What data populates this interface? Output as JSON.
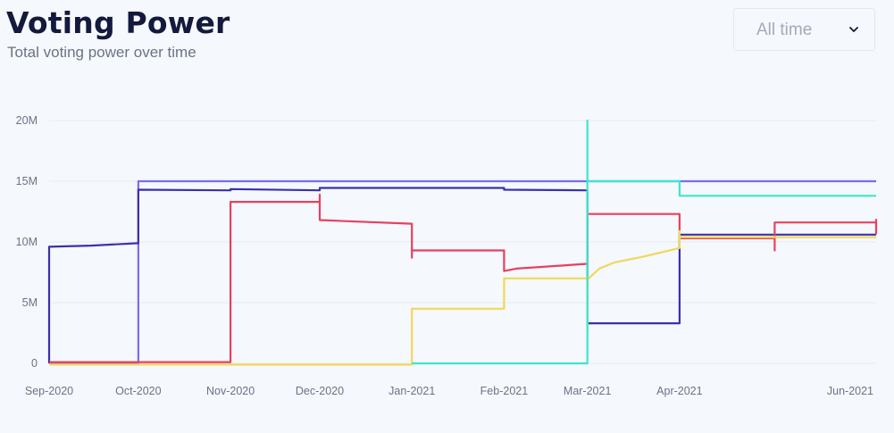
{
  "header": {
    "title": "Voting Power",
    "subtitle": "Total voting power over time"
  },
  "range_select": {
    "value": "All time",
    "icon": "chevron-down-icon"
  },
  "chart_data": {
    "type": "line",
    "x_axis": {
      "type": "date",
      "ticks": [
        "Sep-2020",
        "Oct-2020",
        "Nov-2020",
        "Dec-2020",
        "Jan-2021",
        "Feb-2021",
        "Mar-2021",
        "Apr-2021",
        "Jun-2021"
      ],
      "range": [
        "2020-09-01",
        "2021-06-10"
      ]
    },
    "y_axis": {
      "ticks": [
        "0",
        "5M",
        "10M",
        "15M",
        "20M"
      ],
      "range": [
        0,
        20000000
      ]
    },
    "grid": true,
    "legend": false,
    "series": [
      {
        "color": "#7a6cf0",
        "points": [
          [
            "2020-09-01",
            0
          ],
          [
            "2020-10-01",
            0
          ],
          [
            "2020-10-01",
            15000000
          ],
          [
            "2021-06-10",
            15000000
          ]
        ]
      },
      {
        "color": "#3a31a8",
        "points": [
          [
            "2020-09-01",
            0
          ],
          [
            "2020-09-01",
            9600000
          ],
          [
            "2020-09-15",
            9700000
          ],
          [
            "2020-10-01",
            9900000
          ],
          [
            "2020-10-01",
            14300000
          ],
          [
            "2020-11-01",
            14250000
          ],
          [
            "2020-11-01",
            14350000
          ],
          [
            "2020-12-01",
            14250000
          ],
          [
            "2020-12-01",
            14450000
          ],
          [
            "2021-02-01",
            14450000
          ],
          [
            "2021-02-01",
            14300000
          ],
          [
            "2021-03-01",
            14250000
          ],
          [
            "2021-03-01",
            3300000
          ],
          [
            "2021-04-01",
            3300000
          ],
          [
            "2021-04-01",
            10600000
          ],
          [
            "2021-06-10",
            10600000
          ]
        ]
      },
      {
        "color": "#e8405f",
        "points": [
          [
            "2020-09-01",
            100000
          ],
          [
            "2020-11-01",
            100000
          ],
          [
            "2020-11-01",
            13300000
          ],
          [
            "2020-12-01",
            13300000
          ],
          [
            "2020-12-01",
            13900000
          ],
          [
            "2020-12-01",
            11800000
          ],
          [
            "2021-01-01",
            11500000
          ],
          [
            "2021-01-01",
            8700000
          ],
          [
            "2021-01-01",
            9300000
          ],
          [
            "2021-02-01",
            9300000
          ],
          [
            "2021-02-01",
            7600000
          ],
          [
            "2021-02-05",
            7800000
          ],
          [
            "2021-03-01",
            8200000
          ],
          [
            "2021-03-01",
            12300000
          ],
          [
            "2021-04-01",
            12300000
          ],
          [
            "2021-04-01",
            10300000
          ],
          [
            "2021-05-03",
            10300000
          ],
          [
            "2021-05-03",
            9300000
          ],
          [
            "2021-05-03",
            11600000
          ],
          [
            "2021-06-10",
            11600000
          ],
          [
            "2021-06-10",
            10700000
          ],
          [
            "2021-06-10",
            11900000
          ]
        ]
      },
      {
        "color": "#f0d85a",
        "points": [
          [
            "2020-09-01",
            -100000
          ],
          [
            "2021-01-01",
            -100000
          ],
          [
            "2021-01-01",
            4500000
          ],
          [
            "2021-02-01",
            4500000
          ],
          [
            "2021-02-01",
            7000000
          ],
          [
            "2021-03-01",
            7000000
          ],
          [
            "2021-03-01",
            2600000
          ],
          [
            "2021-03-01",
            6900000
          ],
          [
            "2021-03-05",
            7800000
          ],
          [
            "2021-03-10",
            8300000
          ],
          [
            "2021-03-20",
            8800000
          ],
          [
            "2021-04-01",
            9500000
          ],
          [
            "2021-04-01",
            10900000
          ],
          [
            "2021-04-01",
            10400000
          ],
          [
            "2021-06-10",
            10400000
          ]
        ]
      },
      {
        "color": "#3ce6cf",
        "points": [
          [
            "2021-01-01",
            0
          ],
          [
            "2021-03-01",
            0
          ],
          [
            "2021-03-01",
            20000000
          ],
          [
            "2021-03-01",
            15000000
          ],
          [
            "2021-04-01",
            15000000
          ],
          [
            "2021-04-01",
            13800000
          ],
          [
            "2021-06-10",
            13800000
          ]
        ]
      }
    ]
  }
}
